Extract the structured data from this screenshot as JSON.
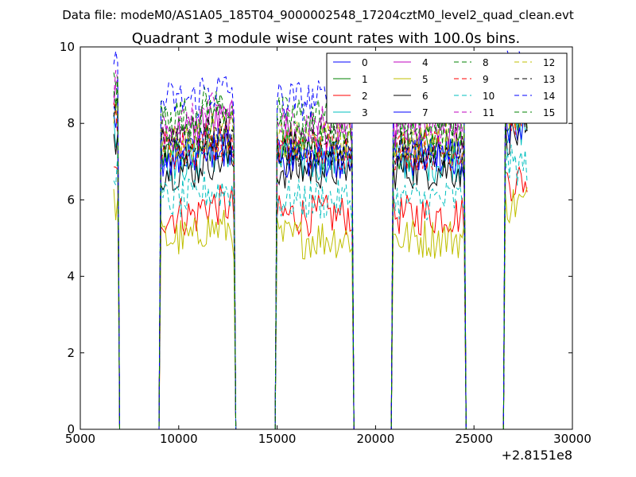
{
  "chart_data": {
    "type": "line",
    "suptitle": "Data file: modeM0/AS1A05_185T04_9000002548_17204cztM0_level2_quad_clean.evt",
    "title": "Quadrant 3 module wise count rates with 100.0s bins.",
    "xlabel": "",
    "ylabel": "",
    "x_offset_label": "+2.8151e8",
    "xlim": [
      5000,
      30000
    ],
    "ylim": [
      0,
      10
    ],
    "x_ticks": [
      "5000",
      "10000",
      "15000",
      "20000",
      "25000",
      "30000"
    ],
    "y_ticks": [
      "0",
      "2",
      "4",
      "6",
      "8",
      "10"
    ],
    "legend_position": "top-right",
    "bin_width": 100,
    "active_intervals": [
      [
        6700,
        6950
      ],
      [
        9100,
        12800
      ],
      [
        15000,
        18800
      ],
      [
        20900,
        24500
      ],
      [
        26600,
        27700
      ]
    ],
    "series": [
      {
        "name": "0",
        "color": "#0000ff",
        "dash": "solid",
        "level": 7.2
      },
      {
        "name": "1",
        "color": "#008000",
        "dash": "solid",
        "level": 7.3
      },
      {
        "name": "2",
        "color": "#ff0000",
        "dash": "solid",
        "level": 5.6
      },
      {
        "name": "3",
        "color": "#00bfbf",
        "dash": "solid",
        "level": 7.0
      },
      {
        "name": "4",
        "color": "#bf00bf",
        "dash": "solid",
        "level": 7.8
      },
      {
        "name": "5",
        "color": "#bfbf00",
        "dash": "solid",
        "level": 5.0
      },
      {
        "name": "6",
        "color": "#000000",
        "dash": "solid",
        "level": 6.8
      },
      {
        "name": "7",
        "color": "#0000ff",
        "dash": "solid",
        "level": 7.1
      },
      {
        "name": "8",
        "color": "#008000",
        "dash": "dashed",
        "level": 8.2
      },
      {
        "name": "9",
        "color": "#ff0000",
        "dash": "dashed",
        "level": 7.3
      },
      {
        "name": "10",
        "color": "#00bfbf",
        "dash": "dashed",
        "level": 6.0
      },
      {
        "name": "11",
        "color": "#bf00bf",
        "dash": "dashed",
        "level": 8.0
      },
      {
        "name": "12",
        "color": "#bfbf00",
        "dash": "dashed",
        "level": 7.5
      },
      {
        "name": "13",
        "color": "#000000",
        "dash": "dashed",
        "level": 7.4
      },
      {
        "name": "14",
        "color": "#0000ff",
        "dash": "dashed",
        "level": 8.6
      },
      {
        "name": "15",
        "color": "#008000",
        "dash": "dashed",
        "level": 7.9
      }
    ]
  }
}
